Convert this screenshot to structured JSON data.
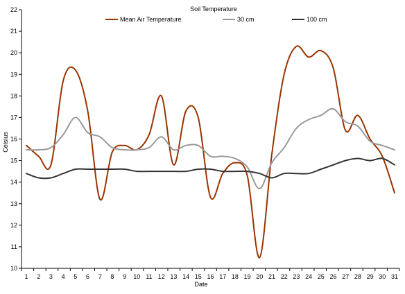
{
  "chart_data": {
    "type": "line",
    "title": "Soil Temperature",
    "xlabel": "Date",
    "ylabel": "Celsius",
    "ylim": [
      10,
      22
    ],
    "yticks": [
      10,
      11,
      12,
      13,
      14,
      15,
      16,
      17,
      18,
      19,
      20,
      21,
      22
    ],
    "categories": [
      "1",
      "2",
      "3",
      "4",
      "5",
      "6",
      "7",
      "8",
      "9",
      "10",
      "11",
      "12",
      "13",
      "14",
      "15",
      "16",
      "17",
      "18",
      "19",
      "20",
      "21",
      "22",
      "23",
      "24",
      "25",
      "26",
      "27",
      "28",
      "29",
      "30",
      "31"
    ],
    "grid": false,
    "legend": "top",
    "series": [
      {
        "name": "Mean Air Temperature",
        "color": "#993300",
        "values": [
          15.7,
          15.2,
          14.8,
          18.7,
          19.2,
          17.3,
          13.2,
          15.4,
          15.7,
          15.5,
          16.2,
          18.0,
          14.8,
          17.3,
          17.0,
          13.3,
          14.4,
          14.9,
          14.3,
          10.5,
          15.3,
          19.0,
          20.3,
          19.8,
          20.1,
          19.3,
          16.4,
          17.1,
          16.0,
          15.2,
          13.5
        ]
      },
      {
        "name": "30 cm",
        "color": "#999999",
        "values": [
          15.5,
          15.5,
          15.6,
          16.2,
          17.0,
          16.3,
          16.1,
          15.6,
          15.5,
          15.5,
          15.6,
          16.1,
          15.5,
          15.7,
          15.7,
          15.2,
          15.2,
          15.1,
          14.7,
          13.7,
          14.9,
          15.6,
          16.5,
          16.9,
          17.1,
          17.4,
          16.8,
          16.6,
          15.9,
          15.7,
          15.5
        ]
      },
      {
        "name": "100 cm",
        "color": "#333333",
        "values": [
          14.4,
          14.2,
          14.2,
          14.4,
          14.6,
          14.6,
          14.6,
          14.6,
          14.6,
          14.5,
          14.5,
          14.5,
          14.5,
          14.5,
          14.6,
          14.6,
          14.5,
          14.5,
          14.5,
          14.4,
          14.2,
          14.4,
          14.4,
          14.4,
          14.6,
          14.8,
          15.0,
          15.1,
          15.0,
          15.1,
          14.8
        ]
      }
    ]
  }
}
